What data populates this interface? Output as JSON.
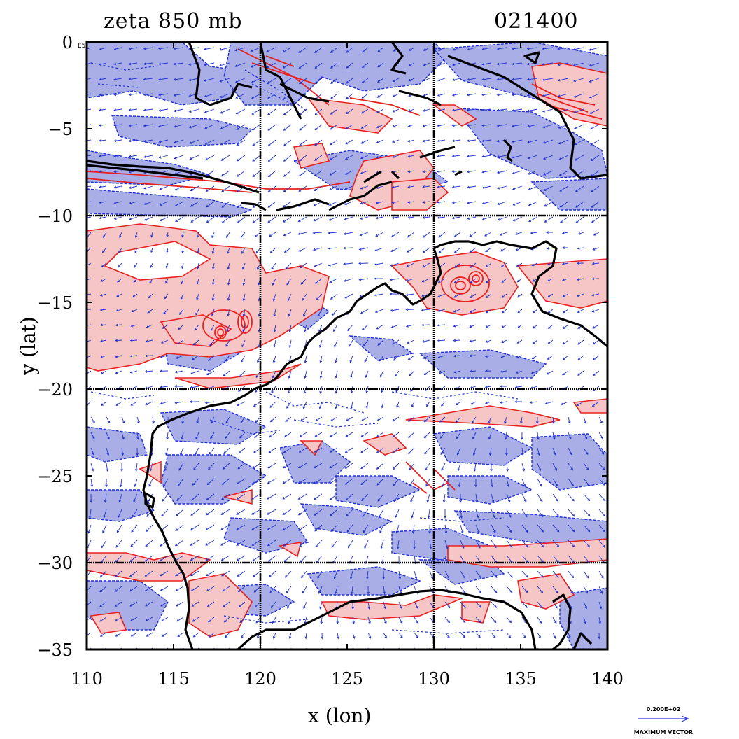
{
  "header": {
    "field_title": "zeta 850 mb",
    "time_label": "021400"
  },
  "axes": {
    "x_label": "x (lon)",
    "y_label": "y (lat)",
    "x_ticks": [
      "110",
      "115",
      "120",
      "125",
      "130",
      "135",
      "140"
    ],
    "y_ticks": [
      "0",
      "−5",
      "−10",
      "−15",
      "−20",
      "−25",
      "−30",
      "−35"
    ],
    "y_tick_values": [
      0,
      -5,
      -10,
      -15,
      -20,
      -25,
      -30,
      -35
    ],
    "x_tick_values": [
      110,
      115,
      120,
      125,
      130,
      135,
      140
    ],
    "lon_range": [
      110,
      140
    ],
    "lat_range": [
      -35,
      0
    ],
    "grid_lon": [
      120,
      130
    ],
    "grid_lat": [
      -10,
      -20,
      -30
    ],
    "corner_marker": "E5"
  },
  "legend": {
    "vector_value": "0.200E+02",
    "vector_caption": "MAXIMUM VECTOR"
  },
  "colors": {
    "positive_fill": "#f6c6c6",
    "positive_line": "#e82020",
    "negative_fill": "#a9aee6",
    "negative_line": "#1f2fd6",
    "vector": "#2233cc",
    "coast": "#000000"
  }
}
